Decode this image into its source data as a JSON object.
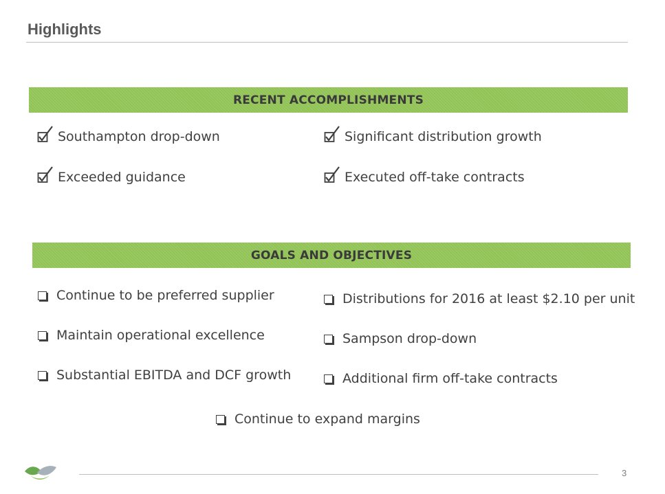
{
  "header": {
    "title": "Highlights"
  },
  "accomplishments": {
    "heading": "RECENT ACCOMPLISHMENTS",
    "items": [
      {
        "label": "Southampton drop-down"
      },
      {
        "label": "Significant distribution growth"
      },
      {
        "label": "Exceeded guidance"
      },
      {
        "label": "Executed off-take contracts"
      }
    ]
  },
  "goals": {
    "heading": "GOALS AND OBJECTIVES",
    "items": [
      {
        "label": "Continue to be preferred supplier"
      },
      {
        "label": "Distributions for 2016 at least $2.10 per unit"
      },
      {
        "label": "Maintain operational excellence"
      },
      {
        "label": "Sampson drop-down"
      },
      {
        "label": "Substantial EBITDA and DCF growth"
      },
      {
        "label": "Additional firm off-take contracts"
      },
      {
        "label": "Continue to expand margins"
      }
    ]
  },
  "footer": {
    "page_number": "3",
    "logo_icon": "company-logo-icon"
  },
  "colors": {
    "band": "#92c356",
    "text": "#404040",
    "title": "#595959"
  }
}
